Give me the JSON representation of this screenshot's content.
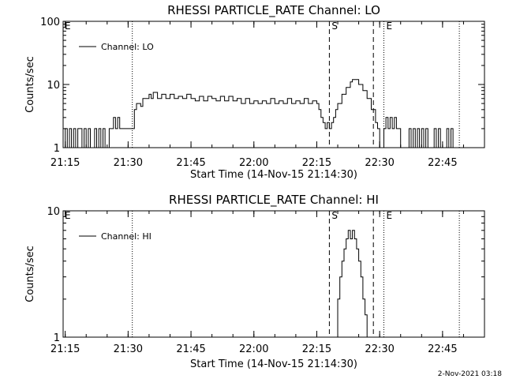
{
  "chart_data": [
    {
      "type": "line",
      "title": "RHESSI PARTICLE_RATE Channel: LO",
      "xlabel": "Start Time (14-Nov-15 21:14:30)",
      "ylabel": "Counts/sec",
      "yscale": "log",
      "ylim": [
        1,
        100
      ],
      "xlim": [
        "21:14:30",
        "22:55:00"
      ],
      "xticks": [
        "21:15",
        "21:30",
        "21:45",
        "22:00",
        "22:15",
        "22:30",
        "22:45"
      ],
      "yticks": [
        "1",
        "10",
        "100"
      ],
      "legend": "top-left",
      "grid": false,
      "series": [
        {
          "name": "Channel: LO",
          "points": [
            [
              "21:14:30",
              1
            ],
            [
              "21:15:00",
              2
            ],
            [
              "21:15:30",
              1
            ],
            [
              "21:16:00",
              2
            ],
            [
              "21:16:30",
              1
            ],
            [
              "21:17:00",
              2
            ],
            [
              "21:17:30",
              1
            ],
            [
              "21:18:00",
              2
            ],
            [
              "21:18:30",
              2
            ],
            [
              "21:19:00",
              1
            ],
            [
              "21:19:30",
              2
            ],
            [
              "21:20:00",
              1
            ],
            [
              "21:20:30",
              2
            ],
            [
              "21:21:00",
              1
            ],
            [
              "21:21:30",
              1
            ],
            [
              "21:22:00",
              2
            ],
            [
              "21:22:30",
              1
            ],
            [
              "21:23:00",
              2
            ],
            [
              "21:23:30",
              1
            ],
            [
              "21:24:00",
              2
            ],
            [
              "21:24:30",
              1
            ],
            [
              "21:25:00",
              1
            ],
            [
              "21:25:30",
              2
            ],
            [
              "21:26:00",
              2
            ],
            [
              "21:26:30",
              3
            ],
            [
              "21:27:00",
              2
            ],
            [
              "21:27:30",
              3
            ],
            [
              "21:28:00",
              2
            ],
            [
              "21:29:00",
              2
            ],
            [
              "21:30:00",
              2
            ],
            [
              "21:31:00",
              2
            ],
            [
              "21:31:30",
              4
            ],
            [
              "21:32:00",
              5
            ],
            [
              "21:32:30",
              5
            ],
            [
              "21:33:00",
              4.5
            ],
            [
              "21:33:30",
              6
            ],
            [
              "21:34:00",
              6
            ],
            [
              "21:35:00",
              7
            ],
            [
              "21:35:30",
              6
            ],
            [
              "21:36:00",
              7.5
            ],
            [
              "21:37:00",
              6
            ],
            [
              "21:38:00",
              7
            ],
            [
              "21:39:00",
              6
            ],
            [
              "21:40:00",
              7
            ],
            [
              "21:41:00",
              6
            ],
            [
              "21:42:00",
              6.5
            ],
            [
              "21:43:00",
              6
            ],
            [
              "21:44:00",
              7
            ],
            [
              "21:45:00",
              6
            ],
            [
              "21:46:00",
              5.5
            ],
            [
              "21:47:00",
              6.5
            ],
            [
              "21:48:00",
              5.5
            ],
            [
              "21:49:00",
              6.5
            ],
            [
              "21:50:00",
              6
            ],
            [
              "21:51:00",
              5.5
            ],
            [
              "21:52:00",
              6.5
            ],
            [
              "21:53:00",
              5.5
            ],
            [
              "21:54:00",
              6.5
            ],
            [
              "21:55:00",
              5.5
            ],
            [
              "21:56:00",
              6
            ],
            [
              "21:57:00",
              5
            ],
            [
              "21:58:00",
              6
            ],
            [
              "21:59:00",
              5
            ],
            [
              "22:00:00",
              5.5
            ],
            [
              "22:01:00",
              5
            ],
            [
              "22:02:00",
              5.5
            ],
            [
              "22:03:00",
              5
            ],
            [
              "22:04:00",
              6
            ],
            [
              "22:05:00",
              5
            ],
            [
              "22:06:00",
              5.5
            ],
            [
              "22:07:00",
              5
            ],
            [
              "22:08:00",
              6
            ],
            [
              "22:09:00",
              5
            ],
            [
              "22:10:00",
              5.5
            ],
            [
              "22:11:00",
              5
            ],
            [
              "22:12:00",
              6
            ],
            [
              "22:13:00",
              5
            ],
            [
              "22:14:00",
              5.5
            ],
            [
              "22:15:00",
              5
            ],
            [
              "22:15:30",
              4
            ],
            [
              "22:16:00",
              3
            ],
            [
              "22:16:30",
              2.5
            ],
            [
              "22:17:00",
              2
            ],
            [
              "22:17:30",
              2.5
            ],
            [
              "22:18:00",
              2
            ],
            [
              "22:18:30",
              2.5
            ],
            [
              "22:19:00",
              3
            ],
            [
              "22:19:30",
              4
            ],
            [
              "22:20:00",
              5
            ],
            [
              "22:21:00",
              7
            ],
            [
              "22:22:00",
              9
            ],
            [
              "22:23:00",
              11
            ],
            [
              "22:23:30",
              12
            ],
            [
              "22:24:00",
              12
            ],
            [
              "22:25:00",
              10
            ],
            [
              "22:26:00",
              8
            ],
            [
              "22:27:00",
              6
            ],
            [
              "22:28:00",
              4
            ],
            [
              "22:29:00",
              2.5
            ],
            [
              "22:29:30",
              2
            ],
            [
              "22:30:00",
              1
            ],
            [
              "22:31:00",
              2
            ],
            [
              "22:31:30",
              3
            ],
            [
              "22:32:00",
              2
            ],
            [
              "22:32:30",
              3
            ],
            [
              "22:33:00",
              2
            ],
            [
              "22:33:30",
              3
            ],
            [
              "22:34:00",
              2
            ],
            [
              "22:35:00",
              1
            ],
            [
              "22:36:00",
              1
            ],
            [
              "22:37:00",
              2
            ],
            [
              "22:37:30",
              1
            ],
            [
              "22:38:00",
              2
            ],
            [
              "22:38:30",
              1
            ],
            [
              "22:39:00",
              2
            ],
            [
              "22:39:30",
              1
            ],
            [
              "22:40:00",
              2
            ],
            [
              "22:40:30",
              1
            ],
            [
              "22:41:00",
              2
            ],
            [
              "22:41:30",
              1
            ],
            [
              "22:42:00",
              1
            ],
            [
              "22:43:00",
              2
            ],
            [
              "22:43:30",
              1
            ],
            [
              "22:44:00",
              2
            ],
            [
              "22:44:30",
              1
            ],
            [
              "22:45:00",
              1
            ],
            [
              "22:46:00",
              2
            ],
            [
              "22:46:30",
              1
            ],
            [
              "22:47:00",
              2
            ],
            [
              "22:47:30",
              1
            ],
            [
              "22:48:00",
              1
            ]
          ]
        }
      ],
      "vlines": [
        {
          "time": "21:31:00",
          "style": "dotted"
        },
        {
          "time": "22:18:00",
          "style": "dashed",
          "label": "S"
        },
        {
          "time": "22:28:30",
          "style": "dashed"
        },
        {
          "time": "22:31:00",
          "style": "dotted",
          "label": "E"
        },
        {
          "time": "22:49:00",
          "style": "dotted"
        }
      ],
      "corner_label": "E"
    },
    {
      "type": "line",
      "title": "RHESSI PARTICLE_RATE Channel: HI",
      "xlabel": "Start Time (14-Nov-15 21:14:30)",
      "ylabel": "Counts/sec",
      "yscale": "log",
      "ylim": [
        1,
        10
      ],
      "xlim": [
        "21:14:30",
        "22:55:00"
      ],
      "xticks": [
        "21:15",
        "21:30",
        "21:45",
        "22:00",
        "22:15",
        "22:30",
        "22:45"
      ],
      "yticks": [
        "1",
        "10"
      ],
      "legend": "top-left",
      "grid": false,
      "series": [
        {
          "name": "Channel: HI",
          "points": [
            [
              "22:19:30",
              1
            ],
            [
              "22:20:00",
              2
            ],
            [
              "22:20:30",
              3
            ],
            [
              "22:21:00",
              4
            ],
            [
              "22:21:30",
              5
            ],
            [
              "22:22:00",
              6
            ],
            [
              "22:22:30",
              7
            ],
            [
              "22:23:00",
              6
            ],
            [
              "22:23:30",
              7
            ],
            [
              "22:24:00",
              6
            ],
            [
              "22:24:30",
              5
            ],
            [
              "22:25:00",
              4
            ],
            [
              "22:25:30",
              3
            ],
            [
              "22:26:00",
              2
            ],
            [
              "22:26:30",
              1.5
            ],
            [
              "22:27:00",
              1
            ]
          ]
        }
      ],
      "vlines": [
        {
          "time": "21:31:00",
          "style": "dotted"
        },
        {
          "time": "22:18:00",
          "style": "dashed",
          "label": "S"
        },
        {
          "time": "22:28:30",
          "style": "dashed"
        },
        {
          "time": "22:31:00",
          "style": "dotted",
          "label": "E"
        },
        {
          "time": "22:49:00",
          "style": "dotted"
        }
      ],
      "corner_label": "E"
    }
  ],
  "timestamp": "2-Nov-2021 03:18"
}
